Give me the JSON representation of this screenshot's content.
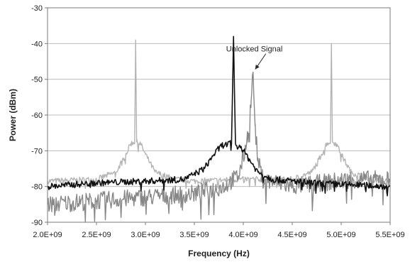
{
  "chart_data": {
    "type": "line",
    "title": "",
    "xlabel": "Frequency (Hz)",
    "ylabel": "Power (dBm)",
    "xlim": [
      2000000000,
      5500000000
    ],
    "ylim": [
      -90,
      -30
    ],
    "grid": "horizontal",
    "x_ticks": [
      2000000000,
      2500000000,
      3000000000,
      3500000000,
      4000000000,
      4500000000,
      5000000000,
      5500000000
    ],
    "x_tick_labels": [
      "2.0E+09",
      "2.5E+09",
      "3.0E+09",
      "3.5E+09",
      "4.0E+09",
      "4.5E+09",
      "5.0E+09",
      "5.5E+09"
    ],
    "y_ticks": [
      -90,
      -80,
      -70,
      -60,
      -50,
      -40,
      -30
    ],
    "y_tick_labels": [
      "-90",
      "-80",
      "-70",
      "-60",
      "-50",
      "-40",
      "-30"
    ],
    "annotation": {
      "text": "Unlocked Signal",
      "x": 4100000000,
      "y": -48
    },
    "series": [
      {
        "color": "#b4b4b4",
        "noise": 0.8,
        "points": [
          [
            2000000000,
            -78.5
          ],
          [
            2500000000,
            -78
          ],
          [
            2700000000,
            -76
          ],
          [
            2800000000,
            -71
          ],
          [
            2850000000,
            -68
          ],
          [
            2890000000,
            -67.5
          ],
          [
            2900000000,
            -39
          ],
          [
            2910000000,
            -67.5
          ],
          [
            2950000000,
            -68
          ],
          [
            3000000000,
            -71
          ],
          [
            3100000000,
            -76
          ],
          [
            3300000000,
            -78
          ],
          [
            3500000000,
            -78.5
          ],
          [
            4000000000,
            -78
          ],
          [
            4500000000,
            -78
          ],
          [
            4700000000,
            -76
          ],
          [
            4800000000,
            -71
          ],
          [
            4850000000,
            -68
          ],
          [
            4890000000,
            -67.5
          ],
          [
            4900000000,
            -40
          ],
          [
            4910000000,
            -67.5
          ],
          [
            4950000000,
            -68
          ],
          [
            5000000000,
            -71
          ],
          [
            5100000000,
            -76
          ],
          [
            5300000000,
            -78
          ],
          [
            5500000000,
            -78.5
          ]
        ]
      },
      {
        "color": "#888888",
        "noise": 2.5,
        "points": [
          [
            2000000000,
            -85
          ],
          [
            2500000000,
            -84
          ],
          [
            3000000000,
            -83
          ],
          [
            3500000000,
            -82
          ],
          [
            3800000000,
            -80
          ],
          [
            3950000000,
            -77
          ],
          [
            4000000000,
            -72
          ],
          [
            4050000000,
            -65
          ],
          [
            4080000000,
            -56
          ],
          [
            4100000000,
            -48
          ],
          [
            4120000000,
            -63
          ],
          [
            4150000000,
            -73
          ],
          [
            4200000000,
            -78
          ],
          [
            4500000000,
            -80
          ],
          [
            4800000000,
            -79
          ],
          [
            5100000000,
            -78
          ],
          [
            5500000000,
            -78
          ]
        ]
      },
      {
        "color": "#111111",
        "noise": 0.9,
        "points": [
          [
            2000000000,
            -80
          ],
          [
            2500000000,
            -79
          ],
          [
            3000000000,
            -78.5
          ],
          [
            3400000000,
            -78
          ],
          [
            3600000000,
            -75
          ],
          [
            3700000000,
            -71
          ],
          [
            3780000000,
            -68.5
          ],
          [
            3880000000,
            -68
          ],
          [
            3900000000,
            -38
          ],
          [
            3920000000,
            -68
          ],
          [
            3980000000,
            -69
          ],
          [
            4050000000,
            -72
          ],
          [
            4150000000,
            -76
          ],
          [
            4300000000,
            -78
          ],
          [
            4700000000,
            -79
          ],
          [
            5100000000,
            -79.5
          ],
          [
            5500000000,
            -80
          ]
        ]
      }
    ]
  }
}
